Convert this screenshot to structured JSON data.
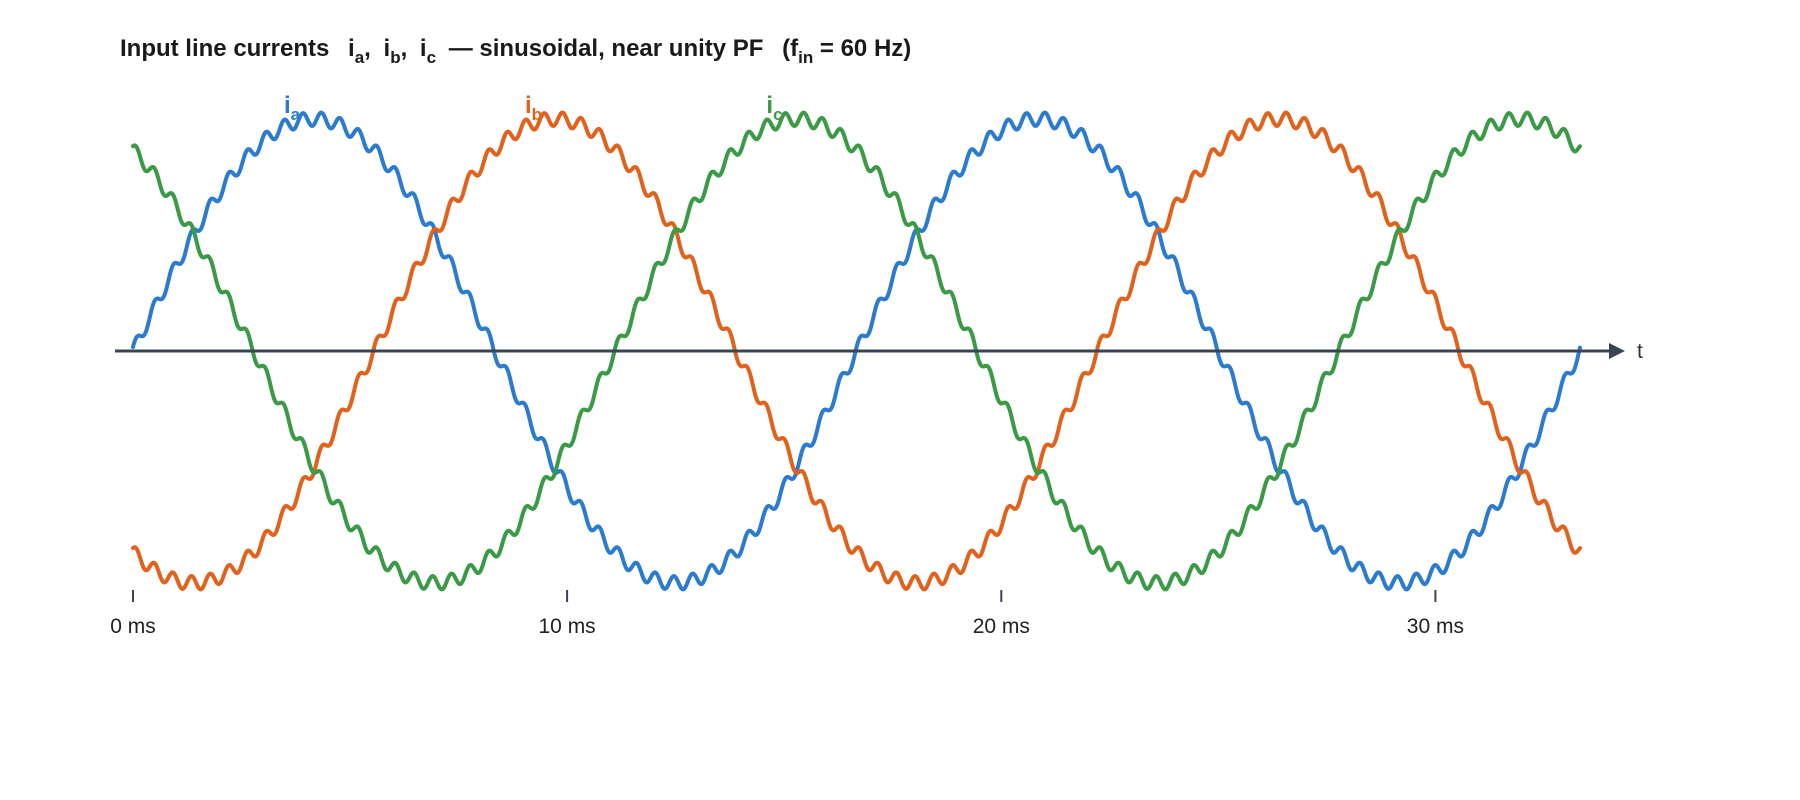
{
  "chart_data": {
    "type": "line",
    "title": {
      "main": "Input line currents",
      "ia_base": "i",
      "ia_sub": "a",
      "ib_base": "i",
      "ib_sub": "b",
      "ic_base": "i",
      "ic_sub": "c",
      "middle": "— sinusoidal, near unity PF",
      "f_base": "f",
      "f_sub": "in",
      "f_value": " = 60 Hz)",
      "open_paren": "(",
      "comma": ","
    },
    "xlabel": "t",
    "ylabel": "",
    "x_unit": "ms",
    "x_range": [
      0,
      33.33
    ],
    "y_range": [
      -1.05,
      1.05
    ],
    "grid": false,
    "legend": "inline labels at peaks",
    "fundamental_hz": 60,
    "ripple_harmonic": 39,
    "ripple_amplitude": 0.03,
    "x_ticks": [
      {
        "value": 0,
        "label": "0 ms"
      },
      {
        "value": 10,
        "label": "10 ms"
      },
      {
        "value": 20,
        "label": "20 ms"
      },
      {
        "value": 30,
        "label": "30 ms"
      }
    ],
    "series": [
      {
        "name_base": "i",
        "name_sub": "a",
        "phase_deg": 0,
        "color": "#2b7bce",
        "label_peak_ms": 4.17
      },
      {
        "name_base": "i",
        "name_sub": "b",
        "phase_deg": -120,
        "color": "#e0621c",
        "label_peak_ms": 9.72
      },
      {
        "name_base": "i",
        "name_sub": "c",
        "phase_deg": 120,
        "color": "#3a9a45",
        "label_peak_ms": 15.28
      }
    ]
  }
}
